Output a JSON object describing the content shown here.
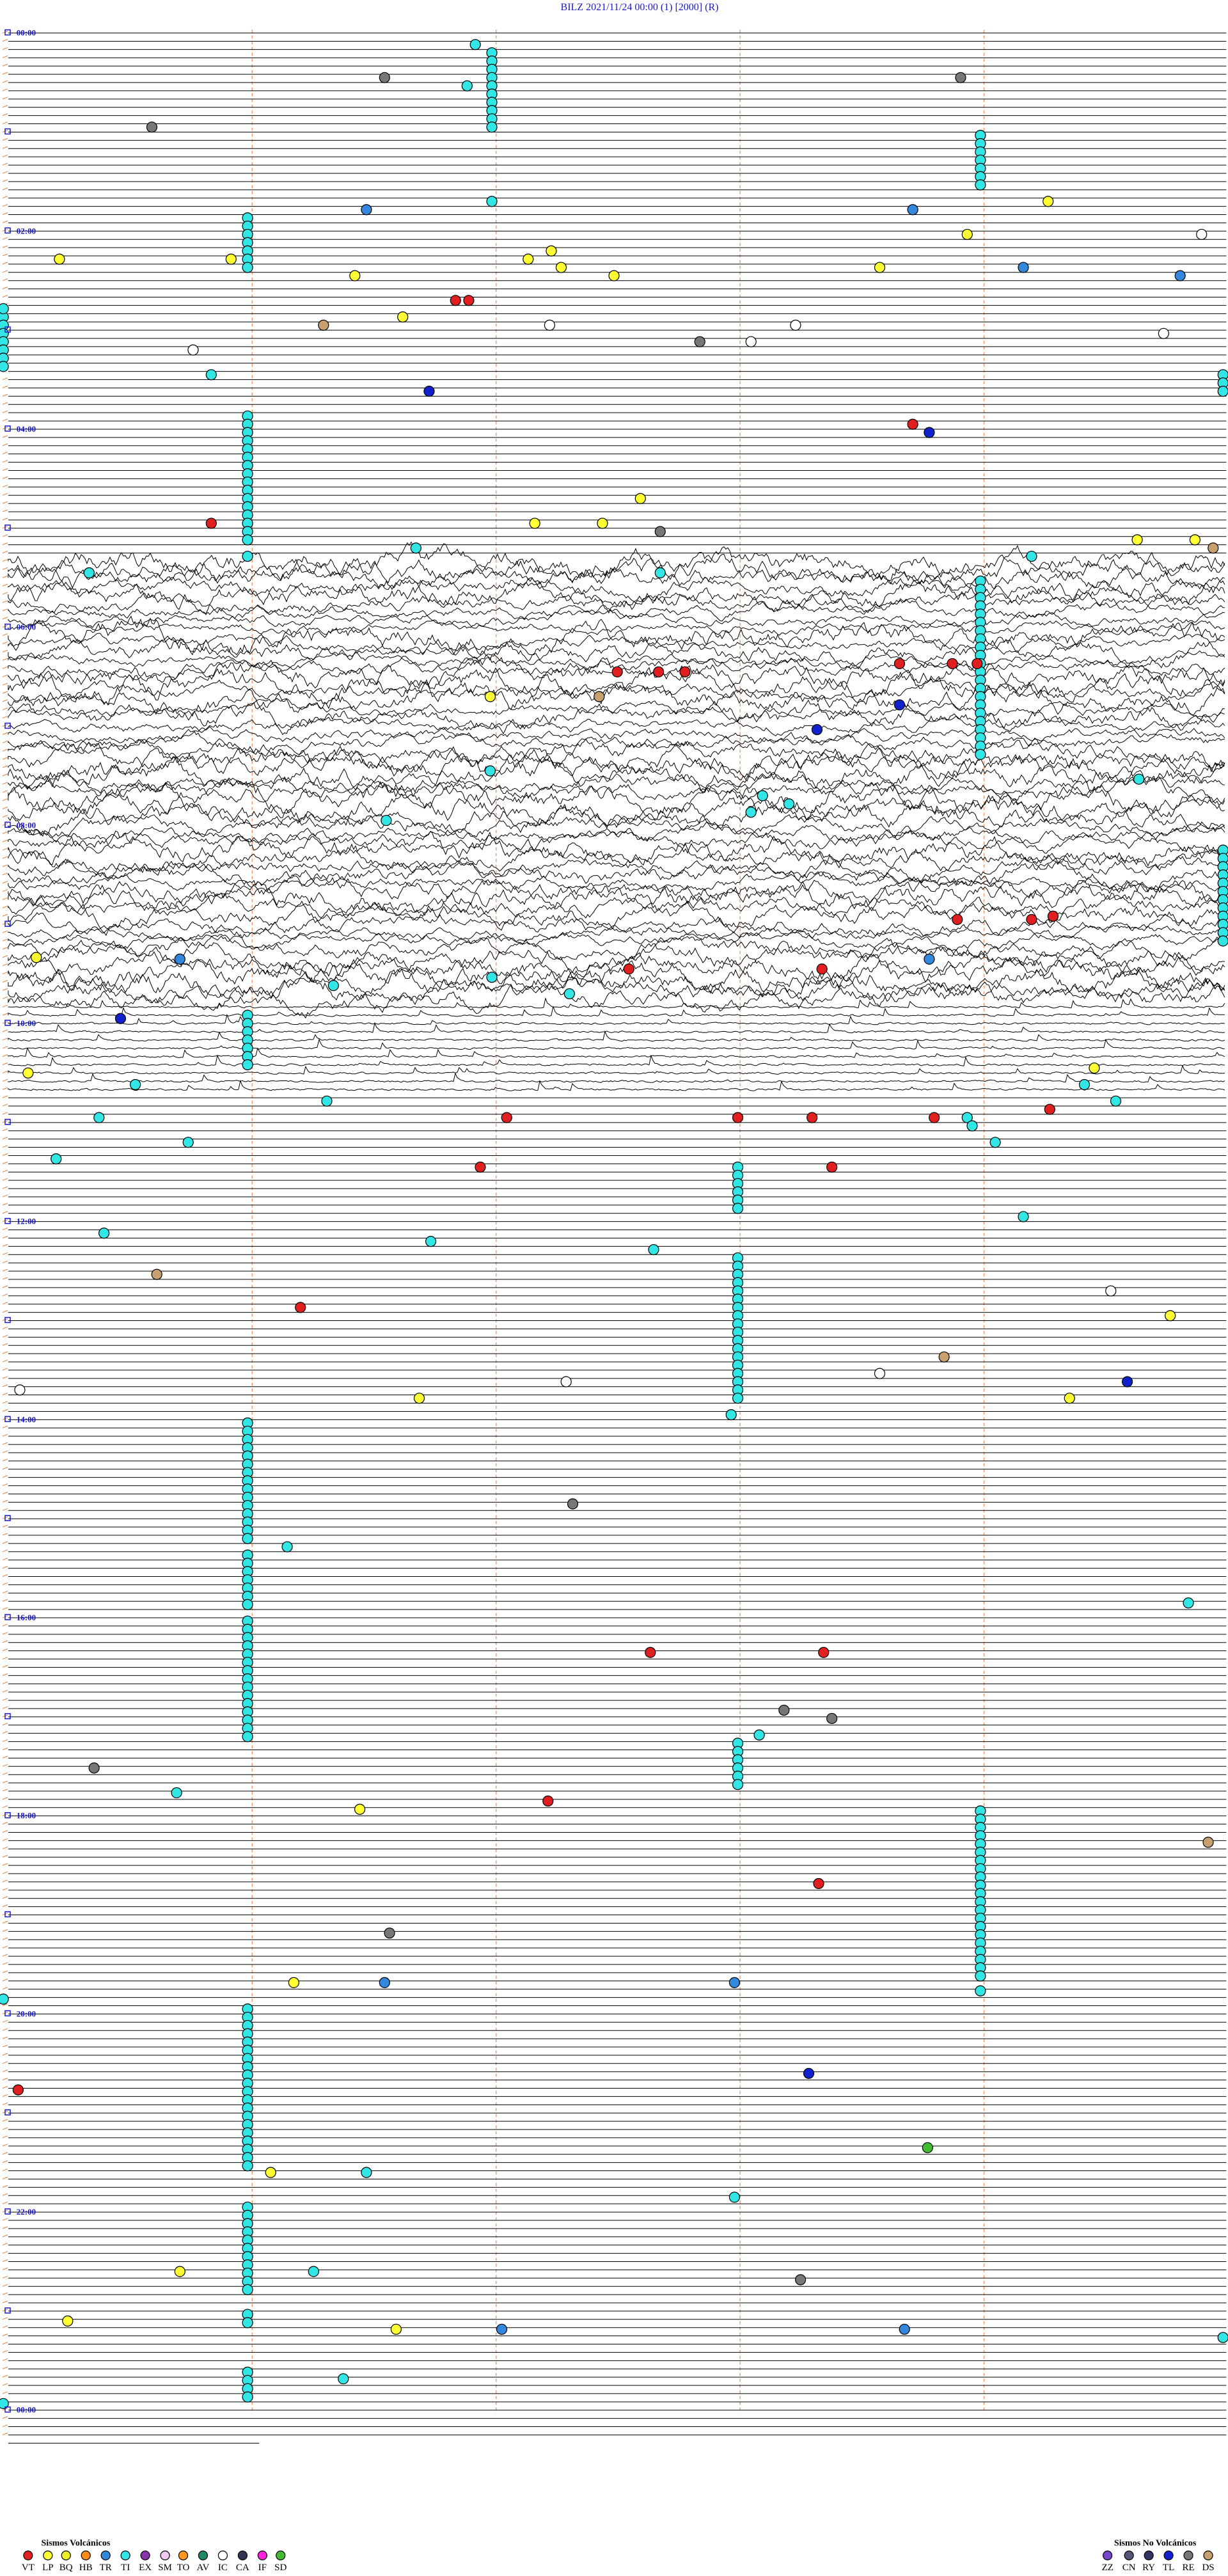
{
  "header": {
    "title": "BILZ    2021/11/24 00:00    (1)    [2000]   (R)"
  },
  "hours": [
    "00:00",
    "02:00",
    "04:00",
    "06:00",
    "08:00",
    "10:00",
    "12:00",
    "14:00",
    "16:00",
    "18:00",
    "20:00",
    "22:00",
    "00:00"
  ],
  "legend": {
    "volcanic": {
      "title": "Sismos Volcánicos",
      "types": [
        {
          "code": "VT",
          "color": "#e02020"
        },
        {
          "code": "LP",
          "color": "#ffff33"
        },
        {
          "code": "BQ",
          "color": "#eeee22"
        },
        {
          "code": "HB",
          "color": "#ff8c1a"
        },
        {
          "code": "TR",
          "color": "#3388dd"
        },
        {
          "code": "TI",
          "color": "#33e6e6"
        },
        {
          "code": "EX",
          "color": "#8833aa"
        },
        {
          "code": "SM",
          "color": "#f0c8f0"
        },
        {
          "code": "TO",
          "color": "#ff9922"
        },
        {
          "code": "AV",
          "color": "#228866"
        },
        {
          "code": "IC",
          "color": "#ffffff"
        },
        {
          "code": "CA",
          "color": "#333355"
        },
        {
          "code": "IF",
          "color": "#ff22dd"
        },
        {
          "code": "SD",
          "color": "#44bb33"
        }
      ]
    },
    "non_volcanic": {
      "title": "Sismos No Volcánicos",
      "types": [
        {
          "code": "ZZ",
          "color": "#7744cc"
        },
        {
          "code": "CN",
          "color": "#555577"
        },
        {
          "code": "RY",
          "color": "#333366"
        },
        {
          "code": "TL",
          "color": "#1122cc"
        },
        {
          "code": "RE",
          "color": "#777777"
        },
        {
          "code": "DS",
          "color": "#c8a070"
        }
      ]
    }
  }
}
